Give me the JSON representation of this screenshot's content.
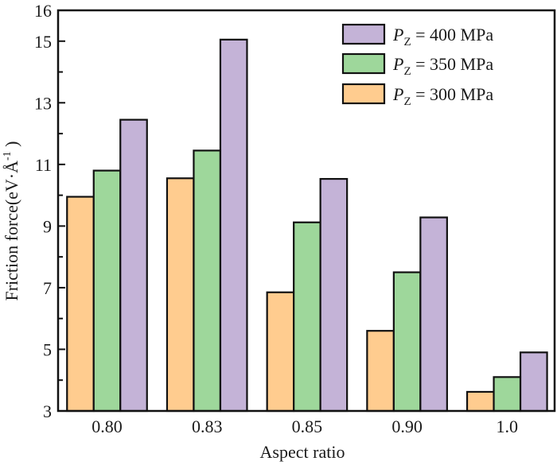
{
  "chart_data": {
    "type": "bar",
    "title": "",
    "xlabel": "Aspect ratio",
    "ylabel": "Friction force(eV·Å",
    "ylabel_sup": "-1",
    "ylabel_tail": " )",
    "categories": [
      "0.80",
      "0.83",
      "0.85",
      "0.90",
      "1.0"
    ],
    "ylim": [
      3,
      16
    ],
    "yticks_major": [
      3,
      5,
      7,
      9,
      11,
      13,
      15,
      16
    ],
    "yticks_minor": [
      4,
      6,
      8,
      10,
      12,
      14
    ],
    "grid": false,
    "legend_position": "top-right",
    "series": [
      {
        "name": "P_Z = 300 MPa",
        "symbol": "P",
        "subscript": "Z",
        "rest": " = 300 MPa",
        "color": "#FFCC8F",
        "values": [
          9.95,
          10.55,
          6.85,
          5.6,
          3.62
        ]
      },
      {
        "name": "P_Z = 350 MPa",
        "symbol": "P",
        "subscript": "Z",
        "rest": " = 350 MPa",
        "color": "#9ED79B",
        "values": [
          10.8,
          11.45,
          9.12,
          7.5,
          4.1
        ]
      },
      {
        "name": "P_Z = 400 MPa",
        "symbol": "P",
        "subscript": "Z",
        "rest": " = 400 MPa",
        "color": "#C4B3D7",
        "values": [
          12.45,
          15.05,
          10.53,
          9.28,
          4.9
        ]
      }
    ],
    "legend_order": [
      2,
      1,
      0
    ]
  }
}
